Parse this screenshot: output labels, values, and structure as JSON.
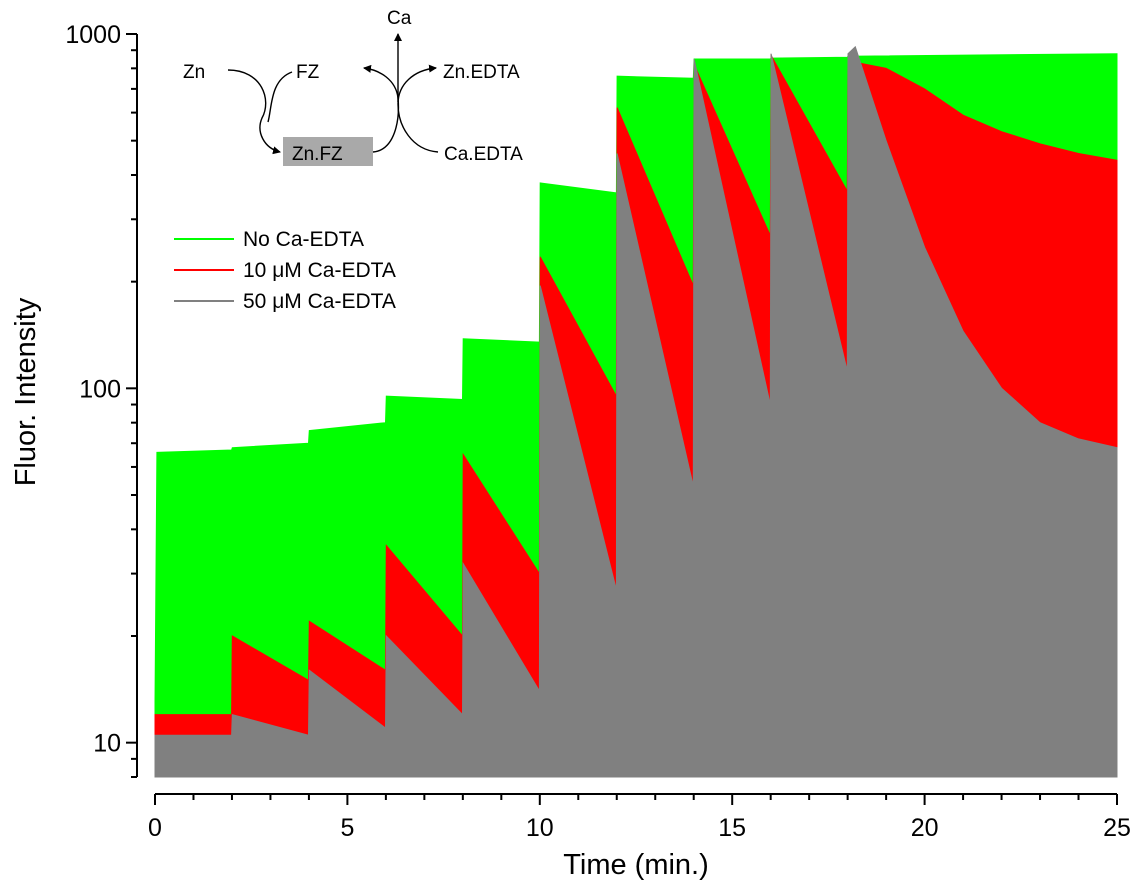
{
  "chart_data": {
    "type": "area",
    "xlabel": "Time (min.)",
    "ylabel": "Fluor. Intensity",
    "xlim": [
      0,
      25
    ],
    "ylim": [
      8,
      1000
    ],
    "y_scale": "log",
    "grid": false,
    "x_ticks": [
      0,
      5,
      10,
      15,
      20,
      25
    ],
    "y_ticks": [
      10,
      100,
      1000
    ],
    "legend_position": "upper-left",
    "series": [
      {
        "name": "No Ca-EDTA",
        "color": "#00ff00",
        "x": [
          0,
          0.05,
          1.99,
          2.01,
          3.99,
          4.01,
          5.99,
          6.01,
          7.99,
          8.01,
          9.99,
          10.01,
          11.99,
          12.01,
          13.99,
          14.01,
          15.99,
          16.01,
          17.99,
          18.01,
          25
        ],
        "y": [
          13,
          66,
          67,
          68,
          70,
          76,
          80,
          95,
          93,
          138,
          135,
          380,
          356,
          760,
          750,
          850,
          850,
          855,
          860,
          865,
          880
        ]
      },
      {
        "name": "10 μM Ca-EDTA",
        "color": "#ff0000",
        "x": [
          0,
          1.99,
          2.01,
          3.99,
          4.01,
          5.99,
          6.01,
          7.99,
          8.01,
          9.99,
          10.01,
          11.99,
          12.01,
          13.99,
          14.01,
          15.99,
          16.01,
          17.99,
          18.01,
          19,
          20,
          21,
          22,
          23,
          24,
          25
        ],
        "y": [
          12,
          12,
          20,
          15,
          22,
          16,
          36,
          20,
          65,
          30,
          235,
          95,
          620,
          195,
          820,
          270,
          870,
          360,
          840,
          800,
          700,
          590,
          530,
          490,
          460,
          440
        ]
      },
      {
        "name": "50 μM Ca-EDTA",
        "color": "#808080",
        "x": [
          0,
          1.99,
          2.01,
          3.99,
          4.01,
          5.99,
          6.01,
          7.99,
          8.01,
          9.99,
          10.01,
          11.99,
          12.01,
          13.99,
          14.01,
          15.99,
          16.01,
          17.99,
          18.01,
          18.2,
          19,
          20,
          21,
          22,
          23,
          24,
          25
        ],
        "y": [
          10.5,
          10.5,
          12,
          10.5,
          16,
          11,
          20,
          12,
          32,
          14,
          195,
          27,
          460,
          53,
          850,
          90,
          880,
          112,
          880,
          920,
          500,
          250,
          145,
          100,
          80,
          72,
          68
        ]
      }
    ],
    "inset": {
      "labels": {
        "zn": "Zn",
        "fz": "FZ",
        "ca": "Ca",
        "zn_edta": "Zn.EDTA",
        "zn_fz": "Zn.FZ",
        "ca_edta": "Ca.EDTA"
      },
      "highlight_color": "#a9a9a9"
    }
  }
}
